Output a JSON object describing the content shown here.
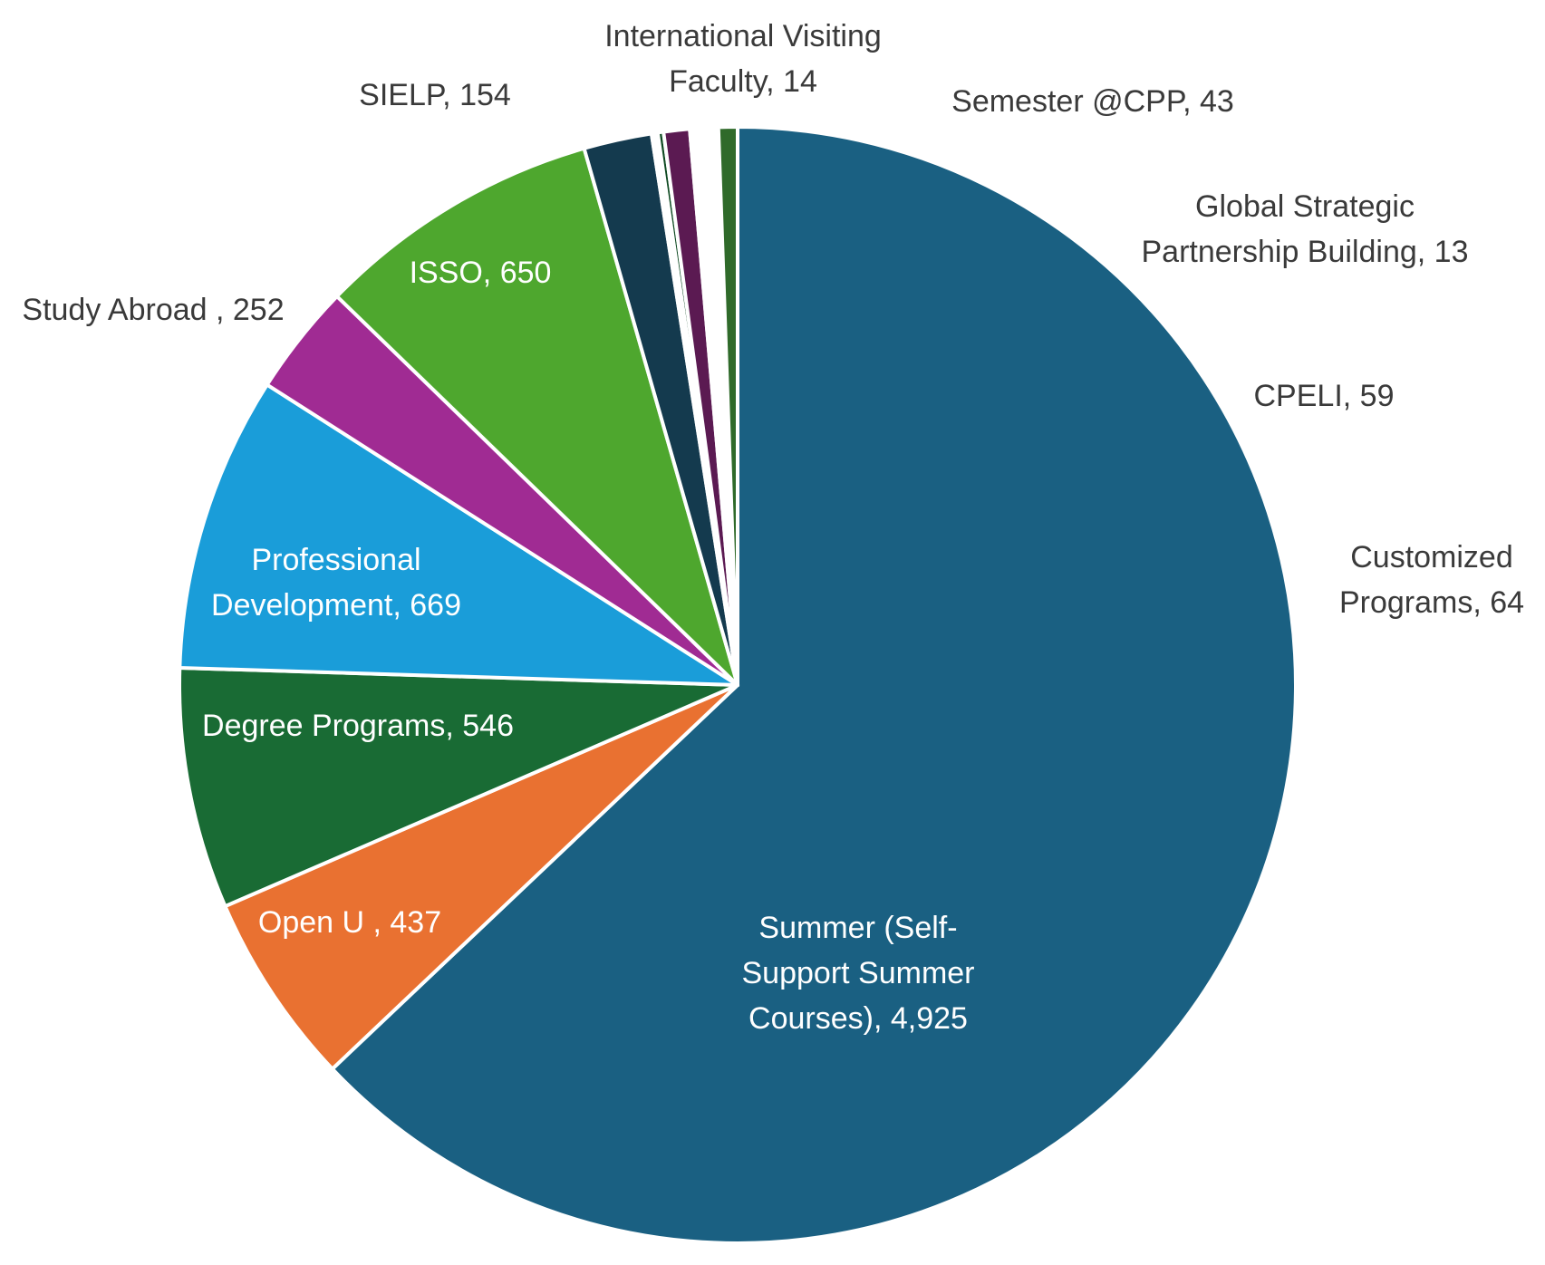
{
  "chart_data": {
    "type": "pie",
    "title": "",
    "start": "12 o'clock, clockwise",
    "slices": [
      {
        "key": "summer",
        "label_lines": [
          "Summer (Self-",
          "Support Summer",
          "Courses), 4,925"
        ],
        "name": "Summer (Self-Support Summer Courses)",
        "value": 4925,
        "color": "#1A6082"
      },
      {
        "key": "openu",
        "label_lines": [
          "Open U , 437"
        ],
        "name": "Open U",
        "value": 437,
        "color": "#E97131"
      },
      {
        "key": "degree",
        "label_lines": [
          "Degree Programs, 546"
        ],
        "name": "Degree Programs",
        "value": 546,
        "color": "#196B34"
      },
      {
        "key": "profdev",
        "label_lines": [
          "Professional",
          "Development, 669"
        ],
        "name": "Professional Development",
        "value": 669,
        "color": "#1A9DD9"
      },
      {
        "key": "studyabroad",
        "label_lines": [
          "Study Abroad , 252"
        ],
        "name": "Study Abroad",
        "value": 252,
        "color": "#A02B93"
      },
      {
        "key": "isso",
        "label_lines": [
          "ISSO, 650"
        ],
        "name": "ISSO",
        "value": 650,
        "color": "#4EA72E"
      },
      {
        "key": "sielp",
        "label_lines": [
          "SIELP, 154"
        ],
        "name": "SIELP",
        "value": 154,
        "color": "#143A4E"
      },
      {
        "key": "ivf",
        "label_lines": [
          "International Visiting",
          "Faculty, 14"
        ],
        "name": "International Visiting Faculty",
        "value": 14,
        "color": "#ffffff"
      },
      {
        "key": "gspb",
        "label_lines": [
          "Global Strategic",
          "Partnership Building, 13"
        ],
        "name": "Global Strategic Partnership Building",
        "value": 13,
        "color": "#0F4A22"
      },
      {
        "key": "cpeli",
        "label_lines": [
          "CPELI, 59"
        ],
        "name": "CPELI",
        "value": 59,
        "color": "#5B1A52"
      },
      {
        "key": "customized",
        "label_lines": [
          "Customized",
          "Programs, 64"
        ],
        "name": "Customized Programs",
        "value": 64,
        "color": "#ffffff"
      },
      {
        "key": "semester",
        "label_lines": [
          "Semester @CPP, 43"
        ],
        "name": "Semester @CPP",
        "value": 43,
        "color": "#2F6A2A"
      }
    ]
  }
}
